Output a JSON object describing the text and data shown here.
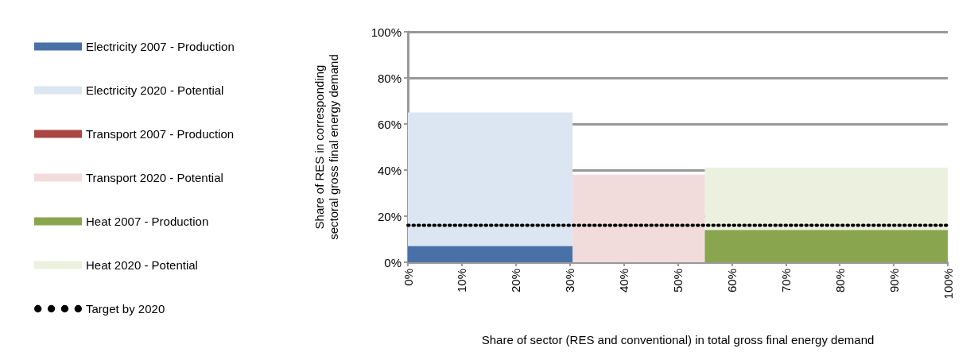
{
  "chart_data": {
    "type": "area",
    "xlabel": "Share of sector (RES and conventional) in total gross final energy demand",
    "ylabel": "Share of RES in corresponding\nsectoral gross final energy demand",
    "series": [
      {
        "name": "Electricity 2007 - Production",
        "color": "#4a71a7",
        "x": [
          0,
          30.5
        ],
        "values": [
          7,
          7
        ]
      },
      {
        "name": "Electricity 2020 - Potential",
        "color": "#dce6f2",
        "x": [
          0,
          30.5
        ],
        "values": [
          65,
          65
        ]
      },
      {
        "name": "Transport 2007 - Production",
        "color": "#aa4643"
      },
      {
        "name": "Transport 2020 - Potential",
        "color": "#f2dcdb",
        "x": [
          30.5,
          55
        ],
        "values": [
          38,
          38
        ]
      },
      {
        "name": "Heat 2007 - Production",
        "color": "#89a54e",
        "x": [
          55,
          100
        ],
        "values": [
          14,
          14
        ]
      },
      {
        "name": "Heat 2020 - Potential",
        "color": "#ebf1de",
        "x": [
          55,
          100
        ],
        "values": [
          41,
          41
        ]
      },
      {
        "name": "Target by 2020",
        "type": "line",
        "color": "#000000",
        "x": [
          0,
          100
        ],
        "values": [
          16,
          16
        ],
        "line_style": "dotted"
      }
    ],
    "xlim": [
      0,
      100
    ],
    "xticks": [
      {
        "value": 0,
        "label": "0%"
      },
      {
        "value": 10,
        "label": "10%"
      },
      {
        "value": 20,
        "label": "20%"
      },
      {
        "value": 30,
        "label": "30%"
      },
      {
        "value": 40,
        "label": "40%"
      },
      {
        "value": 50,
        "label": "50%"
      },
      {
        "value": 60,
        "label": "60%"
      },
      {
        "value": 70,
        "label": "70%"
      },
      {
        "value": 80,
        "label": "80%"
      },
      {
        "value": 90,
        "label": "90%"
      },
      {
        "value": 100,
        "label": "100%"
      }
    ],
    "ylim": [
      0,
      100
    ],
    "yticks": [
      {
        "value": 0,
        "label": "0%"
      },
      {
        "value": 20,
        "label": "20%"
      },
      {
        "value": 40,
        "label": "40%"
      },
      {
        "value": 60,
        "label": "60%"
      },
      {
        "value": 80,
        "label": "80%"
      },
      {
        "value": 100,
        "label": "100%"
      }
    ],
    "grid": "y",
    "legend": "left",
    "marker": "none"
  }
}
